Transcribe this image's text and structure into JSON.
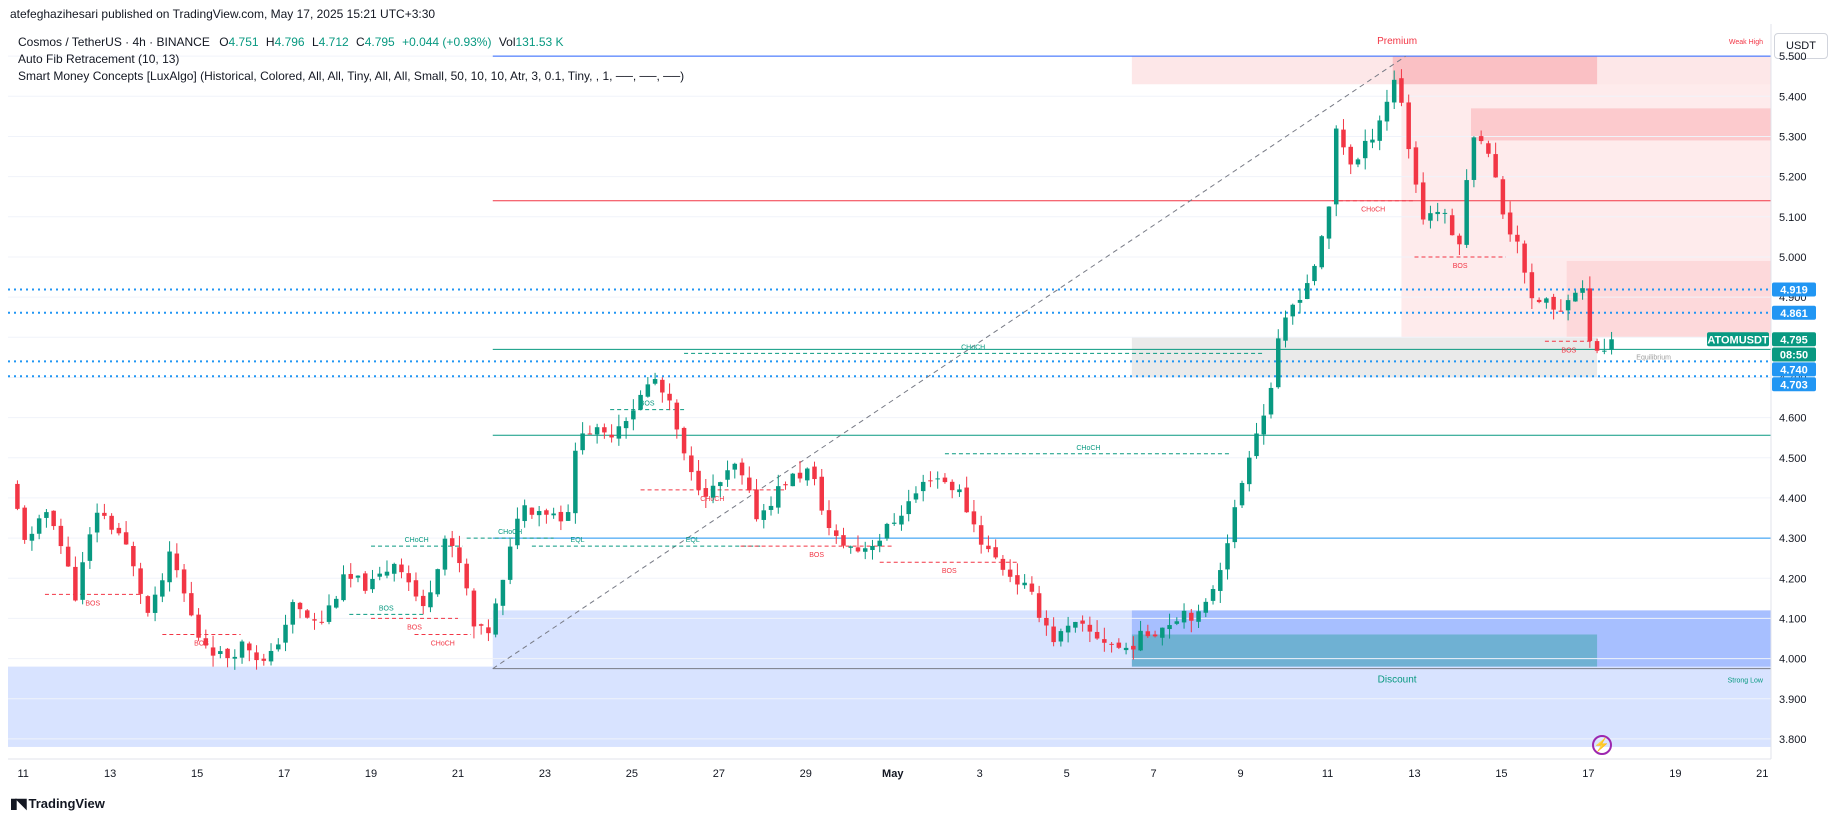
{
  "header": {
    "published_by": "atefeghazihesari published on TradingView.com, May 17, 2025 15:21 UTC+3:30"
  },
  "legend": {
    "symbol": "Cosmos / TetherUS · 4h · BINANCE",
    "o_label": "O",
    "o_value": "4.751",
    "h_label": "H",
    "h_value": "4.796",
    "l_label": "L",
    "l_value": "4.712",
    "c_label": "C",
    "c_value": "4.795",
    "change": "+0.044 (+0.93%)",
    "vol_label": "Vol",
    "vol_value": "131.53 K",
    "indicator_1": "Auto Fib Retracement (10, 13)",
    "indicator_2": "Smart Money Concepts [LuxAlgo] (Historical, Colored, All, All, Tiny, All, All, Small, 50, 10, 10, Atr, 3, 0.1, Tiny, , 1, ──, ──, ──)"
  },
  "unit": "USDT",
  "footer": {
    "brand": "TradingView"
  },
  "colors": {
    "up": "#089981",
    "down": "#f23645",
    "premium": "#f23645",
    "discount": "#2962ff",
    "fib": "#2962ff",
    "accent": "#2196f3"
  },
  "icons": {
    "alert": "lightning-bolt-icon",
    "logo": "tradingview-logo-icon"
  },
  "chart_data": {
    "type": "candlestick",
    "interval": "4h",
    "ylim": [
      3.75,
      5.58
    ],
    "y_ticks": [
      "3.800",
      "3.900",
      "4.000",
      "4.100",
      "4.200",
      "4.300",
      "4.400",
      "4.500",
      "4.600",
      "4.700",
      "4.800",
      "4.900",
      "5.000",
      "5.100",
      "5.200",
      "5.300",
      "5.400",
      "5.500"
    ],
    "x_ticks": [
      {
        "label": "11",
        "day": -20
      },
      {
        "label": "13",
        "day": -18
      },
      {
        "label": "15",
        "day": -16
      },
      {
        "label": "17",
        "day": -14
      },
      {
        "label": "19",
        "day": -12
      },
      {
        "label": "21",
        "day": -10
      },
      {
        "label": "23",
        "day": -8
      },
      {
        "label": "25",
        "day": -6
      },
      {
        "label": "27",
        "day": -4
      },
      {
        "label": "29",
        "day": -2
      },
      {
        "label": "May",
        "day": 0
      },
      {
        "label": "3",
        "day": 2
      },
      {
        "label": "5",
        "day": 4
      },
      {
        "label": "7",
        "day": 6
      },
      {
        "label": "9",
        "day": 8
      },
      {
        "label": "11",
        "day": 10
      },
      {
        "label": "13",
        "day": 12
      },
      {
        "label": "15",
        "day": 14
      },
      {
        "label": "17",
        "day": 16
      },
      {
        "label": "19",
        "day": 18
      },
      {
        "label": "21",
        "day": 20
      }
    ],
    "x_range_days": [
      -20.35,
      20.2
    ],
    "price_path": [
      [
        -20.3,
        4.43
      ],
      [
        -19.9,
        4.28
      ],
      [
        -19.4,
        4.38
      ],
      [
        -18.8,
        4.16
      ],
      [
        -18.3,
        4.37
      ],
      [
        -17.7,
        4.3
      ],
      [
        -17.1,
        4.1
      ],
      [
        -16.6,
        4.26
      ],
      [
        -16.0,
        4.06
      ],
      [
        -15.4,
        4.0
      ],
      [
        -14.9,
        4.04
      ],
      [
        -14.4,
        3.98
      ],
      [
        -13.8,
        4.13
      ],
      [
        -13.2,
        4.08
      ],
      [
        -12.6,
        4.2
      ],
      [
        -12.0,
        4.18
      ],
      [
        -11.4,
        4.25
      ],
      [
        -10.8,
        4.12
      ],
      [
        -10.3,
        4.3
      ],
      [
        -9.9,
        4.22
      ],
      [
        -9.6,
        4.06
      ],
      [
        -9.3,
        4.07
      ],
      [
        -8.9,
        4.21
      ],
      [
        -8.6,
        4.38
      ],
      [
        -8.0,
        4.37
      ],
      [
        -7.5,
        4.35
      ],
      [
        -7.2,
        4.58
      ],
      [
        -6.6,
        4.55
      ],
      [
        -6.0,
        4.62
      ],
      [
        -5.5,
        4.7
      ],
      [
        -5.1,
        4.62
      ],
      [
        -4.7,
        4.46
      ],
      [
        -4.2,
        4.41
      ],
      [
        -3.6,
        4.48
      ],
      [
        -3.1,
        4.35
      ],
      [
        -2.5,
        4.44
      ],
      [
        -1.9,
        4.47
      ],
      [
        -1.4,
        4.3
      ],
      [
        -0.8,
        4.27
      ],
      [
        -0.3,
        4.3
      ],
      [
        0.3,
        4.38
      ],
      [
        0.9,
        4.46
      ],
      [
        1.5,
        4.42
      ],
      [
        2.1,
        4.28
      ],
      [
        2.6,
        4.22
      ],
      [
        3.1,
        4.17
      ],
      [
        3.7,
        4.05
      ],
      [
        4.2,
        4.08
      ],
      [
        4.8,
        4.05
      ],
      [
        5.3,
        4.02
      ],
      [
        5.8,
        4.06
      ],
      [
        6.2,
        4.08
      ],
      [
        6.7,
        4.12
      ],
      [
        7.1,
        4.1
      ],
      [
        7.5,
        4.22
      ],
      [
        7.9,
        4.38
      ],
      [
        8.3,
        4.56
      ],
      [
        8.6,
        4.62
      ],
      [
        8.9,
        4.8
      ],
      [
        9.2,
        4.88
      ],
      [
        9.6,
        4.95
      ],
      [
        10.0,
        5.08
      ],
      [
        10.2,
        5.32
      ],
      [
        10.6,
        5.22
      ],
      [
        11.0,
        5.3
      ],
      [
        11.3,
        5.37
      ],
      [
        11.6,
        5.46
      ],
      [
        11.9,
        5.25
      ],
      [
        12.2,
        5.1
      ],
      [
        12.6,
        5.12
      ],
      [
        13.0,
        5.02
      ],
      [
        13.4,
        5.34
      ],
      [
        13.8,
        5.22
      ],
      [
        14.1,
        5.08
      ],
      [
        14.4,
        5.04
      ],
      [
        14.7,
        4.88
      ],
      [
        15.0,
        4.9
      ],
      [
        15.3,
        4.84
      ],
      [
        15.6,
        4.93
      ],
      [
        15.9,
        4.91
      ],
      [
        16.1,
        4.75
      ],
      [
        16.3,
        4.76
      ],
      [
        16.55,
        4.795
      ]
    ],
    "levels": {
      "fib_top": 5.5,
      "fib_1": 5.14,
      "fib_2": 4.92,
      "fib_3": 4.77,
      "fib_4": 4.556,
      "fib_5": 4.3,
      "fib_bottom": 3.975,
      "dotted_4919": 4.919,
      "dotted_4861": 4.861,
      "dotted_4740": 4.74,
      "dotted_4703": 4.703
    },
    "zones": {
      "premium_top": 5.5,
      "premium_bottom": 5.43,
      "supply_1_top": 5.37,
      "supply_1_bottom": 5.29,
      "supply_2_top": 4.99,
      "supply_2_bottom": 4.8,
      "equilibrium_top": 4.8,
      "equilibrium_bottom": 4.7,
      "discount_top": 4.12,
      "discount_bottom": 3.98,
      "demand_top": 4.06,
      "demand_bottom": 3.98,
      "bottom_zone_top": 3.98,
      "bottom_zone_bottom": 3.78
    },
    "zone_labels": {
      "premium": "Premium",
      "discount": "Discount",
      "weak_high": "Weak High",
      "strong_low": "Strong Low",
      "equilibrium": "Equilibrium"
    },
    "structure": [
      {
        "label": "BOS",
        "kind": "bearish",
        "x1": -19.5,
        "x2": -17.3,
        "y": 4.16
      },
      {
        "label": "BOS",
        "kind": "bearish",
        "x1": -16.8,
        "x2": -15.0,
        "y": 4.06
      },
      {
        "label": "BOS",
        "kind": "bullish",
        "x1": -12.5,
        "x2": -10.8,
        "y": 4.11
      },
      {
        "label": "BOS",
        "kind": "bearish",
        "x1": -12.0,
        "x2": -10.0,
        "y": 4.1
      },
      {
        "label": "CHoCH",
        "kind": "bullish",
        "x1": -12.0,
        "x2": -9.9,
        "y": 4.28
      },
      {
        "label": "CHoCH",
        "kind": "bullish",
        "x1": -9.8,
        "x2": -7.8,
        "y": 4.3
      },
      {
        "label": "CHoCH",
        "kind": "bearish",
        "x1": -11.0,
        "x2": -9.7,
        "y": 4.06
      },
      {
        "label": "EQL",
        "kind": "bullish",
        "x1": -8.3,
        "x2": -6.2,
        "y": 4.28
      },
      {
        "label": "EQL",
        "kind": "bullish",
        "x1": -6.2,
        "x2": -3.0,
        "y": 4.28
      },
      {
        "label": "BOS",
        "kind": "bullish",
        "x1": -6.5,
        "x2": -4.8,
        "y": 4.62
      },
      {
        "label": "CHoCH",
        "kind": "bearish",
        "x1": -5.8,
        "x2": -2.5,
        "y": 4.42
      },
      {
        "label": "BOS",
        "kind": "bearish",
        "x1": -3.5,
        "x2": 0.0,
        "y": 4.28
      },
      {
        "label": "BOS",
        "kind": "bearish",
        "x1": -0.3,
        "x2": 2.9,
        "y": 4.24
      },
      {
        "label": "CHoCH",
        "kind": "bullish",
        "x1": 1.2,
        "x2": 7.8,
        "y": 4.51
      },
      {
        "label": "CHoCH",
        "kind": "bullish",
        "x1": -4.8,
        "x2": 8.5,
        "y": 4.76
      },
      {
        "label": "CHoCH",
        "kind": "bearish",
        "x1": 10.1,
        "x2": 12.0,
        "y": 5.14
      },
      {
        "label": "BOS",
        "kind": "bearish",
        "x1": 12.0,
        "x2": 14.1,
        "y": 5.0
      },
      {
        "label": "BOS",
        "kind": "bearish",
        "x1": 15.0,
        "x2": 16.1,
        "y": 4.79
      }
    ],
    "price_labels": [
      {
        "text": "4.919",
        "y": 4.919,
        "color": "#2196f3"
      },
      {
        "text": "4.861",
        "y": 4.861,
        "color": "#2196f3"
      },
      {
        "text": "ATOMUSDT",
        "y": 4.795,
        "color": "#089981"
      },
      {
        "text": "4.795",
        "y": 4.795,
        "color": "#089981"
      },
      {
        "text": "08:50",
        "y": 4.757,
        "color": "#089981"
      },
      {
        "text": "4.740",
        "y": 4.72,
        "color": "#2196f3"
      },
      {
        "text": "4.703",
        "y": 4.683,
        "color": "#2196f3"
      }
    ]
  }
}
